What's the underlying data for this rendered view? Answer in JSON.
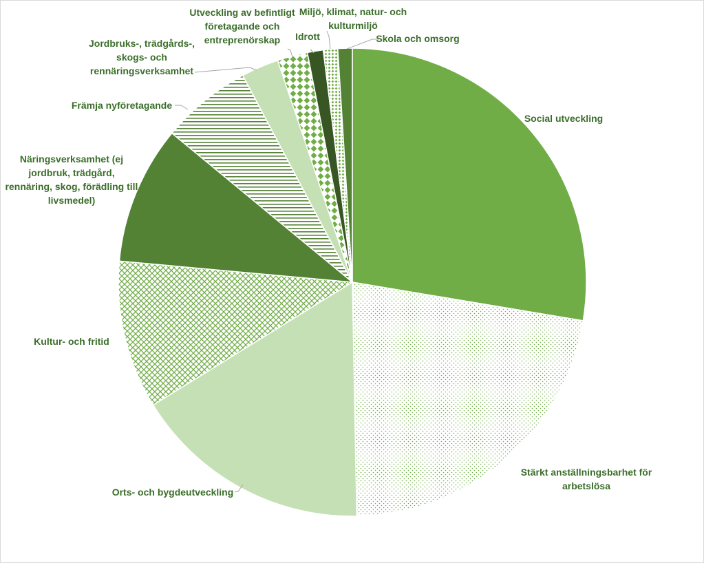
{
  "chart_data": {
    "type": "pie",
    "title": "",
    "legend": "none",
    "slices": [
      {
        "label": "Social utveckling",
        "value": 27.8,
        "color": "#70ad47",
        "pattern": "solid"
      },
      {
        "label": "Stärkt anställningsbarhet för arbetslösa",
        "value": 22.2,
        "color": "#70ad47",
        "pattern": "dots"
      },
      {
        "label": "Orts- och bygdeutveckling",
        "value": 16.6,
        "color": "#c5e0b4",
        "pattern": "solid"
      },
      {
        "label": "Kultur- och fritid",
        "value": 10.3,
        "color": "#70ad47",
        "pattern": "lattice"
      },
      {
        "label": "Näringsverksamhet (ej jordbruk, trädgård, rennäring, skog, förädling till livsmedel)",
        "value": 9.6,
        "color": "#548235",
        "pattern": "solid"
      },
      {
        "label": "Främja nyföretagande",
        "value": 6.3,
        "color": "#548235",
        "pattern": "hlines"
      },
      {
        "label": "Jordbruks-, trädgårds-, skogs- och rennäringsverksamhet",
        "value": 2.6,
        "color": "#c5e0b4",
        "pattern": "solid"
      },
      {
        "label": "Utveckling av befintligt företagande och entreprenörskap",
        "value": 2.1,
        "color": "#70ad47",
        "pattern": "diamonds"
      },
      {
        "label": "Idrott",
        "value": 1.1,
        "color": "#375623",
        "pattern": "solid"
      },
      {
        "label": "Miljö, klimat, natur- och kulturmiljö",
        "value": 1.0,
        "color": "#70ad47",
        "pattern": "smalldots"
      },
      {
        "label": "Skola och omsorg",
        "value": 1.0,
        "color": "#548235",
        "pattern": "solid"
      }
    ]
  }
}
